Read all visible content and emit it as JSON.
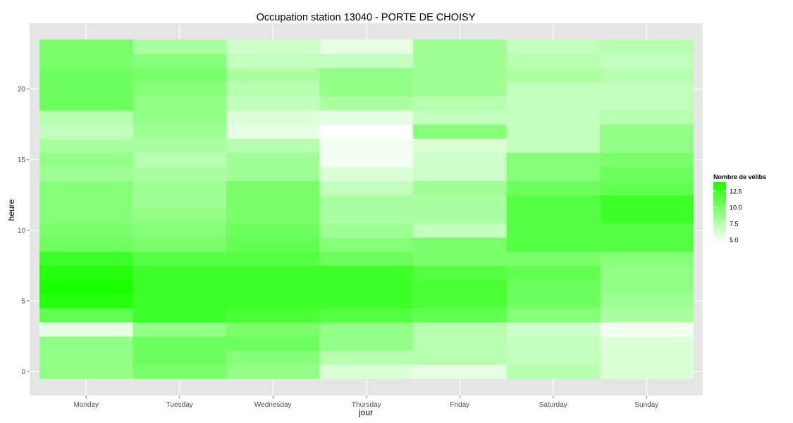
{
  "chart_data": {
    "type": "heatmap",
    "title": "Occupation station 13040 - PORTE DE CHOISY",
    "xlabel": "jour",
    "ylabel": "heure",
    "x_categories": [
      "Monday",
      "Tuesday",
      "Wednesday",
      "Thursday",
      "Friday",
      "Saturday",
      "Sunday"
    ],
    "y_hours": [
      0,
      1,
      2,
      3,
      4,
      5,
      6,
      7,
      8,
      9,
      10,
      11,
      12,
      13,
      14,
      15,
      16,
      17,
      18,
      19,
      20,
      21,
      22,
      23
    ],
    "y_ticks": [
      0,
      5,
      10,
      15,
      20
    ],
    "ylim": [
      -0.5,
      23.5
    ],
    "grid": true,
    "values": [
      [
        9.0,
        9.0,
        9.0,
        5.5,
        11.0,
        13.5,
        14.0,
        13.5,
        12.5,
        10.5,
        10.0,
        9.5,
        9.5,
        9.5,
        8.5,
        9.0,
        8.0,
        7.0,
        7.5,
        10.5,
        10.5,
        10.5,
        10.0,
        10.0
      ],
      [
        10.0,
        10.5,
        10.5,
        9.0,
        12.5,
        12.5,
        12.5,
        12.5,
        11.5,
        10.0,
        9.5,
        9.0,
        8.5,
        8.5,
        8.0,
        7.5,
        8.0,
        8.5,
        9.0,
        9.0,
        9.5,
        10.0,
        9.5,
        8.0
      ],
      [
        9.0,
        9.5,
        10.5,
        10.0,
        12.0,
        12.5,
        12.5,
        12.5,
        11.5,
        11.0,
        10.5,
        10.0,
        10.0,
        10.0,
        8.5,
        8.5,
        7.5,
        5.5,
        6.0,
        7.0,
        7.5,
        8.0,
        7.0,
        6.5
      ],
      [
        6.0,
        7.5,
        9.0,
        9.0,
        11.5,
        12.5,
        12.5,
        12.5,
        10.5,
        9.5,
        8.5,
        8.0,
        8.0,
        7.0,
        6.0,
        5.0,
        5.0,
        4.5,
        5.5,
        8.0,
        9.0,
        9.0,
        7.0,
        5.5
      ],
      [
        5.5,
        7.5,
        7.5,
        7.5,
        11.0,
        12.0,
        12.0,
        11.5,
        10.0,
        10.0,
        7.0,
        8.0,
        8.0,
        8.5,
        6.5,
        6.5,
        6.0,
        9.5,
        7.0,
        7.5,
        8.5,
        8.5,
        8.5,
        8.5
      ],
      [
        7.5,
        7.0,
        7.0,
        6.5,
        9.5,
        10.5,
        10.5,
        11.0,
        10.0,
        11.5,
        11.5,
        11.5,
        11.5,
        10.5,
        9.5,
        9.5,
        7.0,
        7.0,
        7.0,
        7.0,
        7.0,
        8.0,
        7.5,
        7.0
      ],
      [
        6.0,
        6.0,
        6.0,
        5.0,
        8.0,
        8.5,
        9.0,
        9.0,
        9.5,
        11.5,
        11.5,
        12.5,
        12.5,
        11.0,
        10.5,
        10.0,
        9.0,
        9.0,
        7.5,
        7.0,
        7.0,
        7.5,
        7.0,
        7.5
      ]
    ],
    "legend": {
      "title": "Nombre de vélibs",
      "labels": [
        "5.0",
        "7.5",
        "10.0",
        "12.5"
      ],
      "breaks": [
        5.0,
        7.5,
        10.0,
        12.5
      ],
      "range": [
        4.5,
        14.0
      ],
      "position": "right"
    },
    "colors": {
      "low": "#ffffff",
      "high": "#1aff00",
      "panel_background": "#e5e5e5",
      "grid": "#ffffff"
    }
  }
}
